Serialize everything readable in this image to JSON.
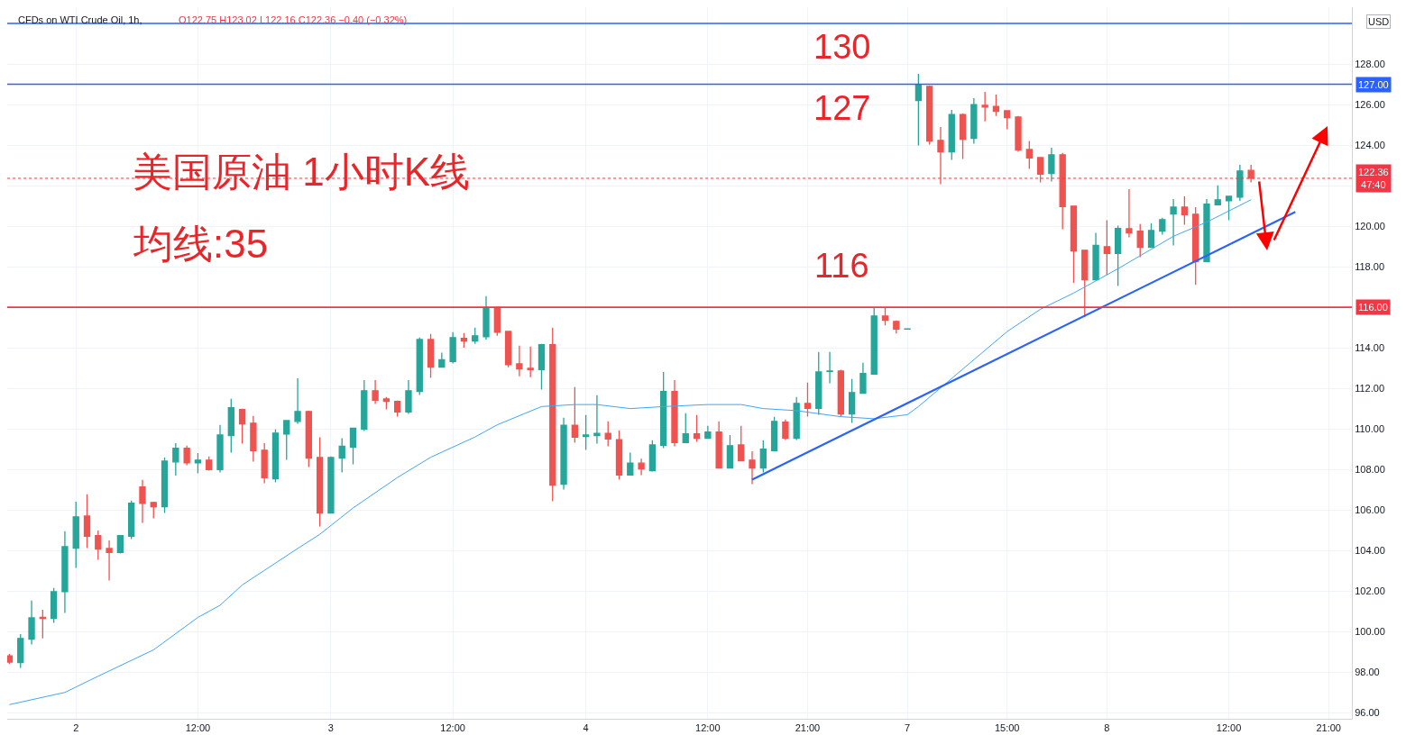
{
  "chart_data": {
    "type": "candlestick",
    "title": "CFDs on WTI Crude Oil, 1h,",
    "subtitle": "O122.75 H123.02 L122.16 C122.36 −0.40 (−0.32%)",
    "categories": [
      null,
      null,
      null,
      null,
      null,
      null,
      "2",
      null,
      null,
      null,
      null,
      null,
      null,
      null,
      null,
      null,
      null,
      "12:00",
      null,
      null,
      null,
      null,
      null,
      null,
      null,
      null,
      null,
      null,
      null,
      "3",
      null,
      null,
      null,
      null,
      null,
      null,
      null,
      null,
      null,
      null,
      "12:00",
      null,
      null,
      null,
      null,
      null,
      null,
      null,
      null,
      null,
      null,
      null,
      "4",
      null,
      null,
      null,
      null,
      null,
      null,
      null,
      null,
      null,
      null,
      "12:00",
      null,
      null,
      null,
      null,
      null,
      null,
      null,
      null,
      "21:00",
      null,
      null,
      null,
      null,
      null,
      null,
      null,
      null,
      "7",
      null,
      null,
      null,
      null,
      null,
      null,
      null,
      null,
      "15:00",
      null,
      null,
      null,
      null,
      null,
      null,
      null,
      null,
      "8",
      null,
      null,
      null,
      null,
      null,
      null,
      null,
      null,
      null,
      null,
      "12:00",
      null,
      null,
      null,
      null,
      null,
      null,
      null,
      null,
      "21:00",
      null,
      null
    ],
    "ohlc": [
      [
        98.8,
        98.9,
        98.4,
        98.5
      ],
      [
        98.47,
        99.88,
        98.21,
        99.66
      ],
      [
        99.63,
        101.53,
        99.36,
        100.68
      ],
      [
        100.7,
        101.08,
        99.66,
        100.65
      ],
      [
        100.65,
        102.15,
        100.43,
        101.97
      ],
      [
        101.97,
        104.95,
        100.92,
        104.19
      ],
      [
        104.12,
        106.41,
        103.14,
        105.66
      ],
      [
        105.7,
        106.77,
        104.12,
        104.7
      ],
      [
        104.73,
        104.99,
        103.54,
        104.07
      ],
      [
        104.1,
        104.5,
        102.52,
        103.9
      ],
      [
        103.9,
        104.73,
        103.85,
        104.73
      ],
      [
        104.7,
        106.46,
        104.56,
        106.33
      ],
      [
        107.13,
        107.48,
        105.36,
        106.33
      ],
      [
        106.37,
        106.41,
        105.59,
        106.16
      ],
      [
        106.16,
        108.59,
        105.85,
        108.41
      ],
      [
        108.37,
        109.3,
        107.7,
        109.04
      ],
      [
        109.04,
        109.17,
        108.21,
        108.33
      ],
      [
        108.33,
        108.81,
        107.81,
        108.46
      ],
      [
        108.46,
        108.64,
        107.94,
        107.99
      ],
      [
        107.99,
        110.19,
        107.85,
        109.7
      ],
      [
        109.67,
        111.48,
        108.83,
        111.04
      ],
      [
        110.95,
        110.99,
        109.27,
        110.25
      ],
      [
        110.28,
        110.64,
        108.39,
        108.92
      ],
      [
        108.95,
        109.3,
        107.32,
        107.59
      ],
      [
        107.54,
        109.97,
        107.36,
        109.79
      ],
      [
        109.75,
        110.41,
        108.47,
        110.41
      ],
      [
        110.37,
        112.5,
        110.25,
        110.86
      ],
      [
        110.86,
        110.9,
        108.12,
        108.56
      ],
      [
        108.59,
        109.59,
        105.19,
        105.85
      ],
      [
        105.85,
        108.64,
        105.85,
        108.59
      ],
      [
        108.56,
        109.54,
        107.85,
        109.14
      ],
      [
        109.1,
        110.03,
        108.25,
        110.03
      ],
      [
        109.99,
        112.41,
        109.9,
        111.88
      ],
      [
        111.88,
        112.41,
        111.23,
        111.41
      ],
      [
        111.48,
        111.57,
        110.96,
        111.36
      ],
      [
        111.35,
        111.39,
        110.61,
        110.83
      ],
      [
        110.83,
        112.41,
        110.74,
        111.88
      ],
      [
        111.85,
        114.5,
        111.67,
        114.41
      ],
      [
        114.41,
        114.68,
        112.52,
        113.05
      ],
      [
        113.05,
        113.76,
        113.05,
        113.41
      ],
      [
        113.32,
        114.77,
        113.23,
        114.5
      ],
      [
        114.46,
        114.73,
        114.01,
        114.33
      ],
      [
        114.33,
        114.99,
        114.19,
        114.59
      ],
      [
        114.55,
        116.55,
        114.41,
        115.99
      ],
      [
        115.99,
        116.01,
        114.59,
        114.77
      ],
      [
        114.81,
        114.81,
        113.04,
        113.17
      ],
      [
        113.21,
        114.1,
        112.59,
        112.96
      ],
      [
        112.99,
        114.06,
        112.55,
        112.92
      ],
      [
        112.92,
        114.19,
        111.94,
        114.15
      ],
      [
        114.15,
        114.99,
        106.43,
        107.23
      ],
      [
        107.27,
        110.55,
        107.01,
        110.18
      ],
      [
        110.18,
        112.06,
        109.32,
        109.59
      ],
      [
        109.63,
        110.68,
        108.96,
        109.7
      ],
      [
        109.67,
        111.66,
        109.27,
        109.78
      ],
      [
        109.78,
        110.37,
        109.14,
        109.5
      ],
      [
        109.47,
        109.93,
        107.5,
        107.72
      ],
      [
        107.72,
        108.83,
        107.72,
        108.31
      ],
      [
        108.31,
        108.53,
        107.72,
        108.03
      ],
      [
        107.94,
        109.44,
        107.9,
        109.21
      ],
      [
        109.19,
        112.81,
        109.05,
        111.84
      ],
      [
        111.84,
        112.41,
        109.14,
        109.32
      ],
      [
        109.32,
        110.77,
        109.32,
        109.75
      ],
      [
        109.75,
        110.68,
        109.36,
        109.54
      ],
      [
        109.54,
        110.15,
        109.54,
        109.84
      ],
      [
        109.84,
        110.37,
        108.07,
        108.07
      ],
      [
        108.07,
        109.7,
        108.07,
        109.17
      ],
      [
        109.21,
        110.15,
        108.43,
        108.43
      ],
      [
        108.46,
        108.9,
        107.27,
        108.07
      ],
      [
        108.07,
        109.44,
        107.85,
        109.0
      ],
      [
        108.92,
        110.59,
        108.92,
        110.37
      ],
      [
        110.33,
        110.46,
        109.45,
        109.54
      ],
      [
        109.54,
        111.57,
        109.45,
        111.26
      ],
      [
        111.26,
        112.28,
        110.61,
        111.01
      ],
      [
        111.01,
        113.79,
        110.7,
        112.81
      ],
      [
        112.83,
        113.79,
        112.25,
        112.86
      ],
      [
        112.85,
        112.92,
        110.61,
        110.74
      ],
      [
        110.74,
        112.46,
        110.3,
        111.79
      ],
      [
        111.76,
        113.26,
        111.76,
        112.73
      ],
      [
        112.7,
        115.97,
        112.7,
        115.57
      ],
      [
        115.57,
        115.97,
        115.1,
        115.36
      ],
      [
        115.3,
        115.35,
        114.7,
        114.92
      ],
      [
        114.92,
        114.93,
        114.92,
        114.93
      ],
      [
        126.2,
        127.51,
        123.98,
        126.98
      ],
      [
        126.89,
        126.93,
        124.02,
        124.2
      ],
      [
        124.23,
        124.89,
        122.07,
        123.67
      ],
      [
        123.67,
        125.74,
        123.27,
        125.51
      ],
      [
        125.51,
        125.56,
        123.31,
        124.29
      ],
      [
        124.33,
        126.31,
        124.07,
        126.0
      ],
      [
        125.96,
        126.62,
        125.17,
        125.88
      ],
      [
        125.91,
        126.49,
        125.44,
        125.66
      ],
      [
        125.69,
        125.69,
        124.78,
        125.35
      ],
      [
        125.38,
        125.43,
        123.67,
        123.75
      ],
      [
        123.78,
        124.2,
        122.82,
        123.36
      ],
      [
        123.38,
        123.38,
        122.16,
        122.56
      ],
      [
        122.6,
        123.87,
        122.2,
        123.52
      ],
      [
        123.52,
        123.61,
        119.85,
        120.96
      ],
      [
        120.99,
        120.99,
        117.19,
        118.78
      ],
      [
        118.81,
        118.81,
        115.5,
        117.36
      ],
      [
        117.36,
        119.67,
        117.32,
        119.05
      ],
      [
        118.99,
        120.29,
        117.59,
        118.65
      ],
      [
        118.65,
        120.03,
        117.05,
        119.89
      ],
      [
        119.88,
        121.83,
        119.45,
        119.67
      ],
      [
        119.75,
        120.1,
        118.47,
        118.96
      ],
      [
        118.96,
        120.15,
        118.96,
        119.79
      ],
      [
        119.76,
        120.41,
        119.58,
        120.32
      ],
      [
        120.6,
        121.34,
        119.05,
        120.94
      ],
      [
        120.94,
        121.47,
        120.07,
        120.56
      ],
      [
        120.59,
        120.94,
        117.1,
        118.25
      ],
      [
        118.25,
        121.34,
        118.25,
        121.08
      ],
      [
        121.05,
        122.01,
        121.05,
        121.3
      ],
      [
        121.25,
        121.47,
        120.29,
        121.47
      ],
      [
        121.43,
        123.03,
        121.25,
        122.72
      ],
      [
        122.75,
        123.02,
        122.16,
        122.36
      ],
      null,
      null,
      null,
      null,
      null,
      null,
      null,
      null,
      null
    ],
    "colors": [
      "#ef5350",
      "#26a69a",
      "#26a69a",
      "#ef5350",
      "#26a69a",
      "#26a69a",
      "#26a69a",
      "#ef5350",
      "#ef5350",
      "#ef5350",
      "#26a69a",
      "#26a69a",
      "#ef5350",
      "#ef5350",
      "#26a69a",
      "#26a69a",
      "#ef5350",
      "#26a69a",
      "#ef5350",
      "#26a69a",
      "#26a69a",
      "#ef5350",
      "#ef5350",
      "#ef5350",
      "#26a69a",
      "#26a69a",
      "#26a69a",
      "#ef5350",
      "#ef5350",
      "#26a69a",
      "#26a69a",
      "#26a69a",
      "#26a69a",
      "#ef5350",
      "#ef5350",
      "#ef5350",
      "#26a69a",
      "#26a69a",
      "#ef5350",
      "#26a69a",
      "#26a69a",
      "#ef5350",
      "#26a69a",
      "#26a69a",
      "#ef5350",
      "#ef5350",
      "#ef5350",
      "#ef5350",
      "#26a69a",
      "#ef5350",
      "#26a69a",
      "#ef5350",
      "#26a69a",
      "#26a69a",
      "#ef5350",
      "#ef5350",
      "#26a69a",
      "#ef5350",
      "#26a69a",
      "#26a69a",
      "#ef5350",
      "#26a69a",
      "#ef5350",
      "#26a69a",
      "#ef5350",
      "#26a69a",
      "#ef5350",
      "#ef5350",
      "#26a69a",
      "#26a69a",
      "#ef5350",
      "#26a69a",
      "#ef5350",
      "#26a69a",
      "#26a69a",
      "#ef5350",
      "#26a69a",
      "#26a69a",
      "#26a69a",
      "#ef5350",
      "#ef5350",
      "#26a69a",
      "#26a69a",
      "#ef5350",
      "#ef5350",
      "#26a69a",
      "#ef5350",
      "#26a69a",
      "#ef5350",
      "#ef5350",
      "#ef5350",
      "#ef5350",
      "#ef5350",
      "#ef5350",
      "#26a69a",
      "#ef5350",
      "#ef5350",
      "#ef5350",
      "#26a69a",
      "#ef5350",
      "#26a69a",
      "#ef5350",
      "#ef5350",
      "#26a69a",
      "#26a69a",
      "#26a69a",
      "#ef5350",
      "#ef5350",
      "#26a69a",
      "#26a69a",
      "#26a69a",
      "#26a69a",
      "#ef5350",
      null,
      null,
      null,
      null,
      null,
      null,
      null,
      null,
      null
    ],
    "series": [
      {
        "type": "line",
        "color": "#42a5f5",
        "values": [
          96.4,
          null,
          null,
          null,
          null,
          97.0,
          null,
          null,
          97.8,
          null,
          null,
          null,
          null,
          99.1,
          null,
          null,
          null,
          100.7,
          null,
          101.3,
          null,
          102.3,
          null,
          null,
          null,
          null,
          104.1,
          null,
          104.8,
          null,
          null,
          106.1,
          null,
          null,
          null,
          107.6,
          null,
          null,
          108.6,
          null,
          null,
          null,
          109.6,
          null,
          110.2,
          null,
          null,
          null,
          111.1,
          null,
          null,
          111.2,
          null,
          111.2,
          null,
          null,
          111.0,
          null,
          null,
          111.1,
          null,
          null,
          null,
          111.2,
          null,
          null,
          111.2,
          null,
          111.0,
          null,
          null,
          110.9,
          null,
          null,
          null,
          110.6,
          null,
          null,
          110.5,
          null,
          null,
          110.7,
          111.1,
          null,
          null,
          null,
          null,
          null,
          null,
          null,
          114.8,
          null,
          null,
          115.9,
          null,
          null,
          116.7,
          null,
          117.3,
          null,
          117.9,
          null,
          null,
          null,
          null,
          119.5,
          null,
          null,
          120.2,
          null,
          null,
          null,
          121.3,
          null,
          null,
          null,
          null,
          null,
          null,
          null,
          null,
          null
        ]
      },
      {
        "type": "line",
        "color": "#2962ff",
        "values": [
          null,
          null,
          null,
          null,
          null,
          null,
          null,
          null,
          null,
          null,
          null,
          null,
          null,
          null,
          null,
          null,
          null,
          null,
          null,
          null,
          null,
          null,
          null,
          null,
          null,
          null,
          null,
          null,
          null,
          null,
          null,
          null,
          null,
          null,
          null,
          null,
          null,
          null,
          null,
          null,
          null,
          null,
          null,
          null,
          null,
          null,
          null,
          null,
          null,
          null,
          null,
          null,
          null,
          null,
          null,
          null,
          null,
          null,
          null,
          null,
          null,
          null,
          null,
          null,
          null,
          null,
          null,
          107.5,
          null,
          null,
          null,
          null,
          null,
          null,
          null,
          null,
          null,
          null,
          null,
          null,
          null,
          null,
          null,
          null,
          null,
          null,
          null,
          null,
          null,
          null,
          null,
          null,
          null,
          null,
          null,
          null,
          null,
          null,
          null,
          null,
          null,
          null,
          null,
          null,
          null,
          null,
          null,
          null,
          null,
          null,
          null,
          null,
          null,
          null,
          null,
          null,
          120.7,
          null,
          null,
          null,
          null,
          null
        ]
      }
    ],
    "ref_lines": [
      {
        "axis": "y",
        "value": 130,
        "color": "#2962ff"
      },
      {
        "axis": "y",
        "value": 127,
        "label": "127.00",
        "color": "#2962ff"
      },
      {
        "axis": "y",
        "value": 116,
        "label": "116.00",
        "color": "#f23645"
      },
      {
        "axis": "y",
        "value": 122.36,
        "label": "122.36\n47:40",
        "color": "#f23645",
        "line_style": "dotted"
      }
    ],
    "annotations": [
      "130",
      "127",
      "116",
      "美国原油 1小时K线",
      "均线:35",
      "USD"
    ],
    "ylim": [
      95.7,
      130.8
    ],
    "yticks": [
      {
        "value": 96,
        "label": "96.00"
      },
      {
        "value": 98,
        "label": "98.00"
      },
      {
        "value": 100,
        "label": "100.00"
      },
      {
        "value": 102,
        "label": "102.00"
      },
      {
        "value": 104,
        "label": "104.00"
      },
      {
        "value": 106,
        "label": "106.00"
      },
      {
        "value": 108,
        "label": "108.00"
      },
      {
        "value": 110,
        "label": "110.00"
      },
      {
        "value": 112,
        "label": "112.00"
      },
      {
        "value": 114,
        "label": "114.00"
      },
      {
        "value": 116,
        "label": null
      },
      {
        "value": 118,
        "label": "118.00"
      },
      {
        "value": 120,
        "label": "120.00"
      },
      {
        "value": 122,
        "label": null
      },
      {
        "value": 124,
        "label": "124.00"
      },
      {
        "value": 126,
        "label": "126.00"
      },
      {
        "value": 128,
        "label": "128.00"
      }
    ],
    "grid": true
  }
}
